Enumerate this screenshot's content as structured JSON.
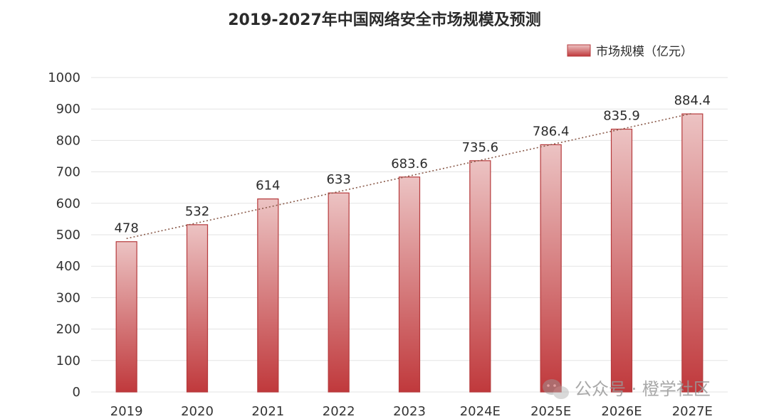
{
  "chart_data": {
    "type": "bar",
    "title": "2019-2027年中国网络安全市场规模及预测",
    "categories": [
      "2019",
      "2020",
      "2021",
      "2022",
      "2023",
      "2024E",
      "2025E",
      "2026E",
      "2027E"
    ],
    "series": [
      {
        "name": "市场规模（亿元）",
        "values": [
          478,
          532,
          614,
          633,
          683.6,
          735.6,
          786.4,
          835.9,
          884.4
        ]
      }
    ],
    "data_labels": [
      "478",
      "532",
      "614",
      "633",
      "683.6",
      "735.6",
      "786.4",
      "835.9",
      "884.4"
    ],
    "ylim": [
      0,
      1000
    ],
    "y_ticks": [
      0,
      100,
      200,
      300,
      400,
      500,
      600,
      700,
      800,
      900,
      1000
    ],
    "grid": true,
    "trendline": "linear dotted",
    "legend": "top-right",
    "colors": {
      "bar_top": "#ecc3c3",
      "bar_bottom": "#c0393c",
      "bar_stroke": "#b63a3c",
      "trendline": "#8a5a4a",
      "grid": "#e3e3e3"
    }
  },
  "watermark": {
    "text": "公众号 · 橙学社区",
    "icon": "wechat-icon"
  }
}
